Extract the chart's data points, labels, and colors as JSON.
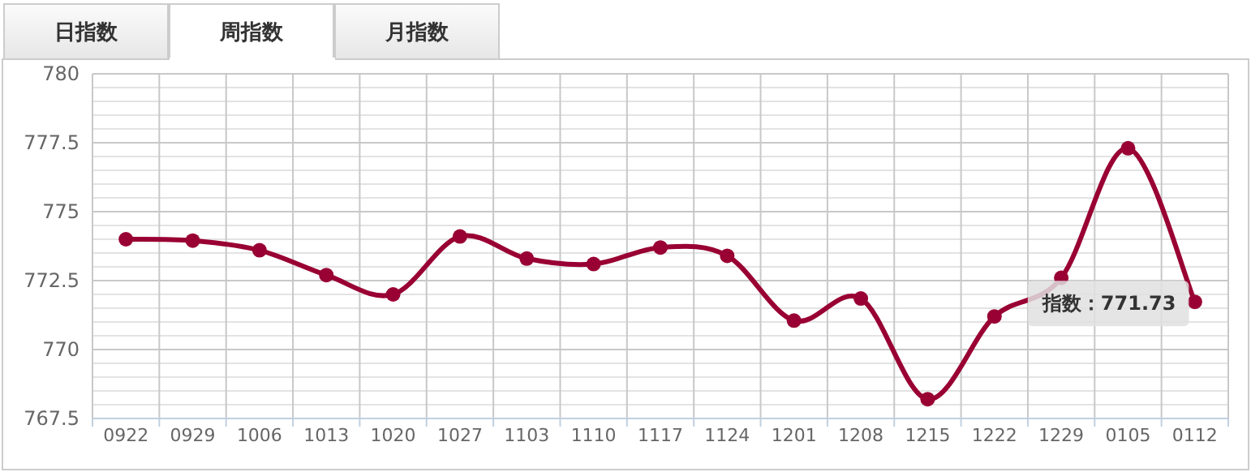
{
  "chart_data": {
    "type": "line",
    "categories": [
      "0922",
      "0929",
      "1006",
      "1013",
      "1020",
      "1027",
      "1103",
      "1110",
      "1117",
      "1124",
      "1201",
      "1208",
      "1215",
      "1222",
      "1229",
      "0105",
      "0112"
    ],
    "series": [
      {
        "color": "#990033",
        "values": [
          774.0,
          773.95,
          773.6,
          772.7,
          772.0,
          774.1,
          773.3,
          773.1,
          773.7,
          773.4,
          771.05,
          771.85,
          768.2,
          771.2,
          772.6,
          777.3,
          771.73
        ]
      }
    ],
    "ylim": [
      767.5,
      780
    ],
    "yticks": [
      767.5,
      {
        "value": 768,
        "label": null
      },
      {
        "value": 768.5,
        "label": null
      },
      {
        "value": 769,
        "label": null
      },
      {
        "value": 769.5,
        "label": null
      },
      770,
      {
        "value": 770.5,
        "label": null
      },
      {
        "value": 771,
        "label": null
      },
      {
        "value": 771.5,
        "label": null
      },
      {
        "value": 772,
        "label": null
      },
      772.5,
      {
        "value": 773,
        "label": null
      },
      {
        "value": 773.5,
        "label": null
      },
      {
        "value": 774,
        "label": null
      },
      {
        "value": 774.5,
        "label": null
      },
      775,
      {
        "value": 775.5,
        "label": null
      },
      {
        "value": 776,
        "label": null
      },
      {
        "value": 776.5,
        "label": null
      },
      {
        "value": 777,
        "label": null
      },
      777.5,
      {
        "value": 778,
        "label": null
      },
      {
        "value": 778.5,
        "label": null
      },
      {
        "value": 779,
        "label": null
      },
      {
        "value": 779.5,
        "label": null
      },
      780
    ],
    "grid": true,
    "marker": "circle",
    "line_style": "solid",
    "annotations": [
      "日指数",
      "周指数",
      "月指数",
      {
        "text": "指数：771.73",
        "x": "0112",
        "y": 771.73
      }
    ]
  }
}
